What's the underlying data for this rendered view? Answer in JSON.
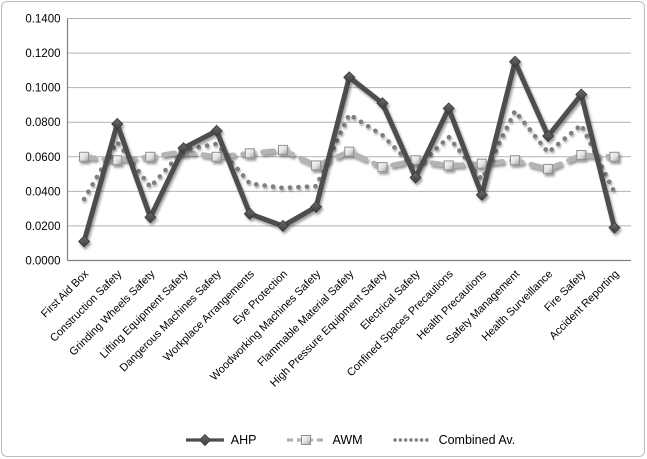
{
  "chart_data": {
    "type": "line",
    "title": "",
    "xlabel": "",
    "ylabel": "",
    "categories": [
      "First Aid Box",
      "Construction Safety",
      "Grinding Wheels Safety",
      "Lifting Equipment Safety",
      "Dangerous Machines Safety",
      "Workplace Arrangements",
      "Eye Protection",
      "Woodworking Machines Safety",
      "Flammable Material Safety",
      "High Pressure Equipment Safety",
      "Electrical Safety",
      "Confined Spaces Precautions",
      "Health Precautions",
      "Safety Management",
      "Health Surveillance",
      "Fire Safety",
      "Accident Reporting"
    ],
    "series": [
      {
        "name": "AHP",
        "style": "solid-diamond",
        "color": "#4e4e4e",
        "values": [
          0.011,
          0.079,
          0.025,
          0.065,
          0.075,
          0.027,
          0.02,
          0.031,
          0.106,
          0.091,
          0.048,
          0.088,
          0.038,
          0.115,
          0.072,
          0.096,
          0.019
        ]
      },
      {
        "name": "AWM",
        "style": "dashed-square",
        "color": "#b4b4b4",
        "values": [
          0.06,
          0.058,
          0.06,
          0.063,
          0.06,
          0.062,
          0.064,
          0.055,
          0.063,
          0.054,
          0.058,
          0.055,
          0.056,
          0.058,
          0.053,
          0.061,
          0.06
        ]
      },
      {
        "name": "Combined Av.",
        "style": "dotted",
        "color": "#7f7f7f",
        "values": [
          0.0355,
          0.0685,
          0.0425,
          0.064,
          0.0675,
          0.0445,
          0.042,
          0.043,
          0.0845,
          0.0725,
          0.053,
          0.0715,
          0.047,
          0.0865,
          0.0625,
          0.0785,
          0.0395
        ]
      }
    ],
    "ylim": [
      0,
      0.14
    ],
    "ytick_step": 0.02,
    "y_tick_labels": [
      "0.0000",
      "0.0200",
      "0.0400",
      "0.0600",
      "0.0800",
      "0.1000",
      "0.1200",
      "0.1400"
    ],
    "grid": "horizontal",
    "legend_position": "bottom"
  },
  "colors": {
    "ahp": "#4e4e4e",
    "awm": "#b4b4b4",
    "combined": "#7f7f7f",
    "grid": "#b3b3b3",
    "axis": "#808080",
    "frame_border": "#bdbdbd",
    "text": "#000000",
    "background": "#ffffff"
  }
}
